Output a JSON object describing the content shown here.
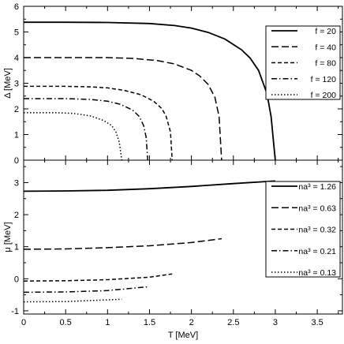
{
  "chart_data": [
    {
      "type": "line",
      "xlabel": "",
      "ylabel": "Δ [MeV]",
      "xlim": [
        0,
        3.8
      ],
      "ylim": [
        0,
        6
      ],
      "yticks": [
        "0",
        "1",
        "2",
        "3",
        "4",
        "5",
        "6"
      ],
      "legend": {
        "placement": "top-right"
      },
      "series": [
        {
          "name": "f = 20",
          "style": "solid",
          "x": [
            0,
            0.5,
            1,
            1.5,
            1.8,
            2,
            2.2,
            2.4,
            2.6,
            2.7,
            2.8,
            2.9,
            2.95,
            3.0
          ],
          "y": [
            5.38,
            5.38,
            5.37,
            5.33,
            5.25,
            5.15,
            4.98,
            4.72,
            4.3,
            3.98,
            3.5,
            2.6,
            1.7,
            0
          ]
        },
        {
          "name": "f = 40",
          "style": "long-dash",
          "x": [
            0,
            0.5,
            1,
            1.3,
            1.6,
            1.8,
            2.0,
            2.1,
            2.2,
            2.28,
            2.33,
            2.36
          ],
          "y": [
            4.0,
            4.0,
            4.0,
            3.97,
            3.88,
            3.75,
            3.5,
            3.28,
            2.95,
            2.45,
            1.7,
            0
          ]
        },
        {
          "name": "f = 80",
          "style": "dash",
          "x": [
            0,
            0.5,
            0.8,
            1.0,
            1.2,
            1.4,
            1.55,
            1.65,
            1.7,
            1.75,
            1.77
          ],
          "y": [
            2.88,
            2.88,
            2.86,
            2.82,
            2.72,
            2.55,
            2.3,
            2.0,
            1.7,
            1.1,
            0
          ]
        },
        {
          "name": "f = 120",
          "style": "dash-dot",
          "x": [
            0,
            0.5,
            0.8,
            1.0,
            1.15,
            1.3,
            1.38,
            1.43,
            1.46,
            1.48
          ],
          "y": [
            2.4,
            2.4,
            2.37,
            2.3,
            2.18,
            1.95,
            1.7,
            1.35,
            0.9,
            0
          ]
        },
        {
          "name": "f = 200",
          "style": "dot",
          "x": [
            0,
            0.4,
            0.6,
            0.8,
            0.95,
            1.05,
            1.1,
            1.14,
            1.17
          ],
          "y": [
            1.85,
            1.85,
            1.82,
            1.72,
            1.55,
            1.35,
            1.1,
            0.7,
            0
          ]
        }
      ]
    },
    {
      "type": "line",
      "xlabel": "T [MeV]",
      "ylabel": "μ [MeV]",
      "xlim": [
        0,
        3.8
      ],
      "ylim": [
        -1.1,
        3.7
      ],
      "xticks": [
        "0",
        "0.5",
        "1",
        "1.5",
        "2",
        "2.5",
        "3",
        "3.5"
      ],
      "yticks": [
        "-1",
        "0",
        "1",
        "2",
        "3"
      ],
      "legend": {
        "placement": "top-right"
      },
      "series": [
        {
          "name": "na³ = 1.26",
          "style": "solid",
          "x": [
            0,
            0.5,
            1,
            1.5,
            2,
            2.5,
            3
          ],
          "y": [
            2.73,
            2.74,
            2.76,
            2.81,
            2.88,
            2.97,
            3.05
          ]
        },
        {
          "name": "na³ = 0.63",
          "style": "long-dash",
          "x": [
            0,
            0.5,
            1,
            1.5,
            2,
            2.36
          ],
          "y": [
            0.92,
            0.93,
            0.97,
            1.03,
            1.13,
            1.25
          ]
        },
        {
          "name": "na³ = 0.32",
          "style": "dash",
          "x": [
            0,
            0.5,
            1,
            1.5,
            1.77
          ],
          "y": [
            -0.07,
            -0.06,
            -0.03,
            0.05,
            0.15
          ]
        },
        {
          "name": "na³ = 0.21",
          "style": "dash-dot",
          "x": [
            0,
            0.5,
            1,
            1.48
          ],
          "y": [
            -0.42,
            -0.41,
            -0.37,
            -0.25
          ]
        },
        {
          "name": "na³ = 0.13",
          "style": "dot",
          "x": [
            0,
            0.5,
            1.17
          ],
          "y": [
            -0.72,
            -0.71,
            -0.64
          ]
        }
      ]
    }
  ]
}
